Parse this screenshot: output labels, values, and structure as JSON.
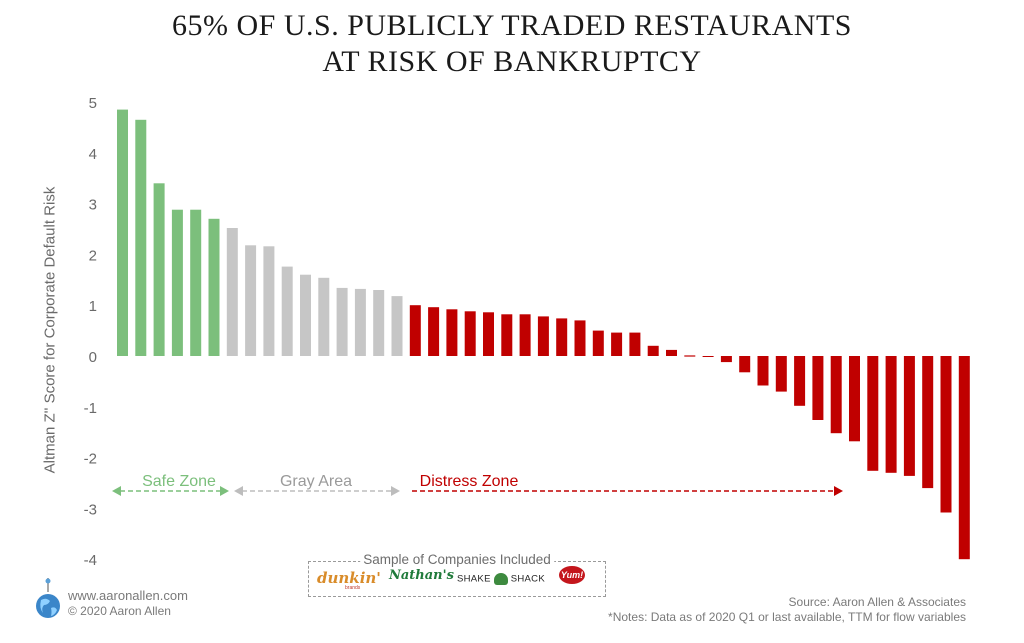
{
  "title_line1": "65% OF U.S. PUBLICLY TRADED RESTAURANTS",
  "title_line2": "AT RISK OF BANKRUPTCY",
  "chart_data": {
    "type": "bar",
    "ylabel": "Altman Z'' Score for Corporate Default Risk",
    "ylim": [
      -4,
      5
    ],
    "yticks": [
      "5",
      "4",
      "3",
      "2",
      "1",
      "0",
      "-1",
      "-2",
      "-3",
      "-4"
    ],
    "grid": false,
    "legend": "none",
    "values": [
      4.85,
      4.65,
      3.4,
      2.88,
      2.88,
      2.7,
      2.52,
      2.18,
      2.16,
      1.76,
      1.6,
      1.54,
      1.34,
      1.32,
      1.3,
      1.18,
      1.0,
      0.96,
      0.92,
      0.88,
      0.86,
      0.82,
      0.82,
      0.78,
      0.74,
      0.7,
      0.5,
      0.46,
      0.46,
      0.2,
      0.12,
      0.0,
      -0.02,
      -0.12,
      -0.32,
      -0.58,
      -0.7,
      -0.98,
      -1.26,
      -1.52,
      -1.68,
      -2.26,
      -2.3,
      -2.36,
      -2.6,
      -3.08,
      -4.0
    ],
    "zones": [
      {
        "label": "Safe Zone",
        "count": 6,
        "color": "#7cbf7c"
      },
      {
        "label": "Gray Area",
        "count": 10,
        "color": "#c6c6c6"
      },
      {
        "label": "Distress Zone",
        "count": 31,
        "color": "#c00000"
      }
    ]
  },
  "sample_title": "Sample of Companies Included",
  "logos": {
    "dunkin": "dunkin'",
    "dunkin_sub": "brands",
    "nathans": "Nathan's",
    "shake_left": "SHAKE",
    "shake_right": "SHACK",
    "yum": "Yum!"
  },
  "footer": {
    "website": "www.aaronallen.com",
    "copyright": "© 2020 Aaron Allen",
    "source": "Source: Aaron Allen & Associates",
    "notes": "*Notes: Data as of 2020 Q1 or last available, TTM for flow variables"
  },
  "colors": {
    "safe": "#7cbf7c",
    "gray": "#c6c6c6",
    "distress": "#c00000"
  }
}
